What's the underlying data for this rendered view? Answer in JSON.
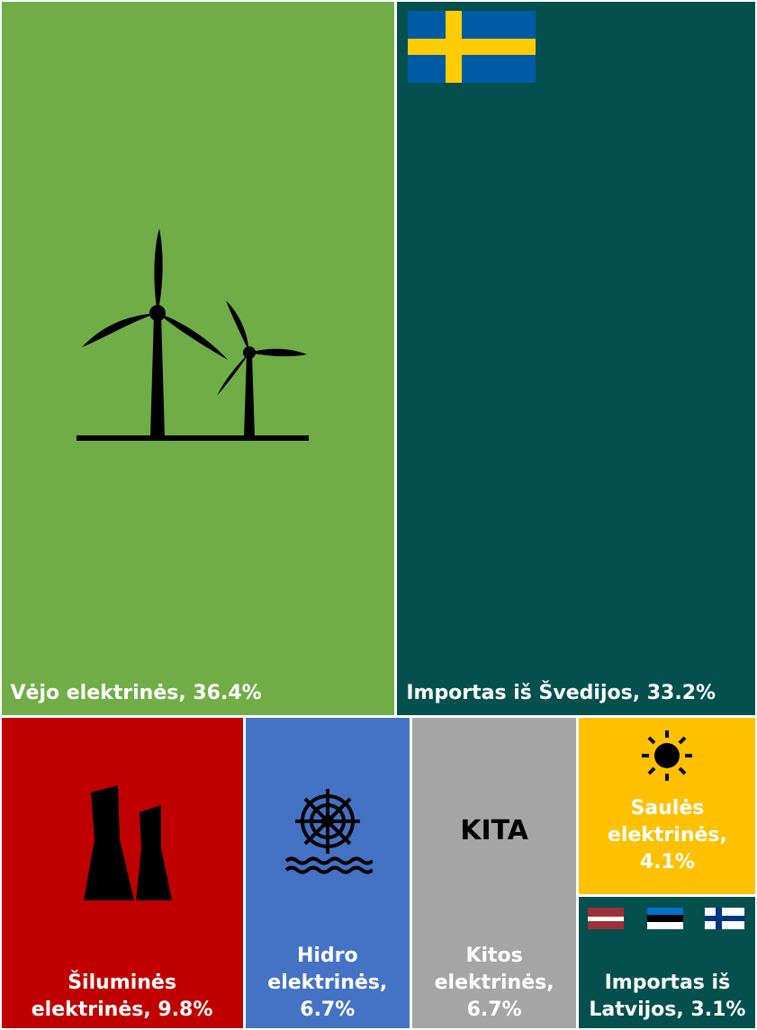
{
  "chart_data": {
    "type": "treemap",
    "categories": [
      "Vėjo elektrinės, 36.4%",
      "Importas iš Švedijos, 33.2%",
      "Šiluminės elektrinės, 9.8%",
      "Hidro elektrinės, 6.7%",
      "Kitos elektrinės, 6.7%",
      "Saulės elektrinės, 4.1%",
      "Importas iš Latvijos, 3.1%"
    ],
    "values": [
      36.4,
      33.2,
      9.8,
      6.7,
      6.7,
      4.1,
      3.1
    ],
    "colors": [
      "#70ad47",
      "#03504f",
      "#c00000",
      "#4472c4",
      "#a5a5a5",
      "#ffc000",
      "#03504f"
    ],
    "annotations": [
      "KITA"
    ]
  }
}
